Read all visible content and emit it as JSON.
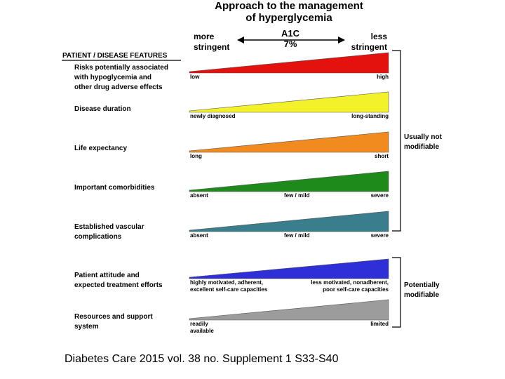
{
  "title": {
    "line1": "Approach to the management",
    "line2": "of hyperglycemia"
  },
  "scale": {
    "left_line1": "more",
    "left_line2": "stringent",
    "right_line1": "less",
    "right_line2": "stringent",
    "a1c_label": "A1C",
    "a1c_value": "7%"
  },
  "section_header": "PATIENT / DISEASE FEATURES",
  "features": [
    {
      "label_lines": [
        "Risks potentially associated",
        "with hypoglycemia and",
        "other drug adverse effects"
      ],
      "color": "#e4120e",
      "scale_labels": {
        "left": [
          "low"
        ],
        "right": [
          "high"
        ]
      }
    },
    {
      "label_lines": [
        "Disease duration"
      ],
      "color": "#f3f22a",
      "scale_labels": {
        "left": [
          "newly diagnosed"
        ],
        "right": [
          "long-standing"
        ]
      }
    },
    {
      "label_lines": [
        "Life expectancy"
      ],
      "color": "#f18a1f",
      "scale_labels": {
        "left": [
          "long"
        ],
        "right": [
          "short"
        ]
      }
    },
    {
      "label_lines": [
        "Important comorbidities"
      ],
      "color": "#1e8a1c",
      "scale_labels": {
        "left": [
          "absent"
        ],
        "middle": [
          "few / mild"
        ],
        "right": [
          "severe"
        ]
      }
    },
    {
      "label_lines": [
        "Established vascular",
        "complications"
      ],
      "color": "#3a7d8c",
      "scale_labels": {
        "left": [
          "absent"
        ],
        "middle": [
          "few / mild"
        ],
        "right": [
          "severe"
        ]
      }
    },
    {
      "label_lines": [
        "Patient attitude and",
        "expected treatment efforts"
      ],
      "color": "#2f2fd8",
      "scale_labels": {
        "left": [
          "highly motivated, adherent,",
          "excellent self-care capacities"
        ],
        "right": [
          "less motivated, nonadherent,",
          "poor self-care capacities"
        ]
      }
    },
    {
      "label_lines": [
        "Resources and support",
        "system"
      ],
      "color": "#9c9c9c",
      "scale_labels": {
        "left": [
          "readily",
          "available"
        ],
        "right": [
          "limited"
        ]
      }
    }
  ],
  "brackets": [
    {
      "label_lines": [
        "Usually not",
        "modifiable"
      ]
    },
    {
      "label_lines": [
        "Potentially",
        "modifiable"
      ]
    }
  ],
  "citation": "Diabetes Care 2015 vol. 38 no. Supplement 1 S33-S40"
}
